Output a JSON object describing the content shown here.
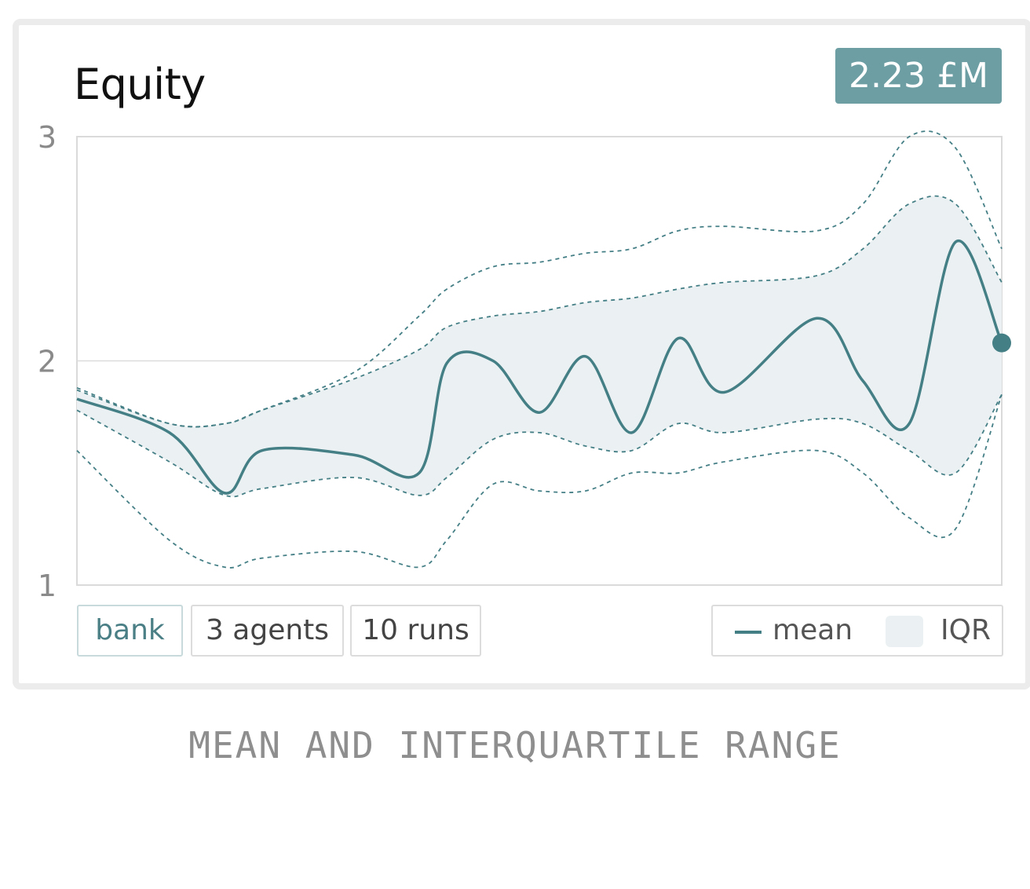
{
  "header": {
    "title": "Equity",
    "badge": "2.23 £M"
  },
  "pills": {
    "bank": "bank",
    "agents": "3 agents",
    "runs": "10 runs"
  },
  "legend": {
    "mean": "mean",
    "iqr": "IQR"
  },
  "caption": "MEAN AND INTERQUARTILE RANGE",
  "colors": {
    "accent": "#457f86",
    "band": "#ebf1f2",
    "badge": "#6c9ea3"
  },
  "chart_data": {
    "type": "line",
    "ylim": [
      1,
      3
    ],
    "yticks": [
      "1",
      "2",
      "3"
    ],
    "x": [
      0,
      0.1,
      0.16,
      0.2,
      0.3,
      0.37,
      0.4,
      0.45,
      0.5,
      0.55,
      0.6,
      0.65,
      0.7,
      0.8,
      0.85,
      0.9,
      0.95,
      1.0
    ],
    "series": [
      {
        "name": "mean",
        "values": [
          1.83,
          1.68,
          1.41,
          1.6,
          1.58,
          1.5,
          1.99,
          2.0,
          1.77,
          2.02,
          1.68,
          2.1,
          1.86,
          2.19,
          1.91,
          1.72,
          2.53,
          2.08
        ]
      },
      {
        "key": "q75",
        "values": [
          1.87,
          1.72,
          1.72,
          1.78,
          1.92,
          2.05,
          2.15,
          2.2,
          2.22,
          2.26,
          2.28,
          2.32,
          2.35,
          2.38,
          2.5,
          2.7,
          2.7,
          2.35
        ]
      },
      {
        "key": "q25",
        "values": [
          1.78,
          1.55,
          1.4,
          1.43,
          1.48,
          1.4,
          1.48,
          1.65,
          1.68,
          1.62,
          1.6,
          1.72,
          1.68,
          1.74,
          1.72,
          1.6,
          1.5,
          1.85
        ]
      },
      {
        "key": "upper",
        "values": [
          1.88,
          1.72,
          1.72,
          1.78,
          1.95,
          2.2,
          2.32,
          2.42,
          2.44,
          2.48,
          2.5,
          2.58,
          2.6,
          2.58,
          2.7,
          3.0,
          2.95,
          2.5
        ]
      },
      {
        "key": "lower",
        "values": [
          1.6,
          1.2,
          1.08,
          1.12,
          1.15,
          1.08,
          1.2,
          1.45,
          1.42,
          1.42,
          1.5,
          1.5,
          1.55,
          1.6,
          1.5,
          1.3,
          1.25,
          1.85
        ]
      }
    ],
    "endpoint": {
      "x": 1.0,
      "y": 2.08
    }
  }
}
